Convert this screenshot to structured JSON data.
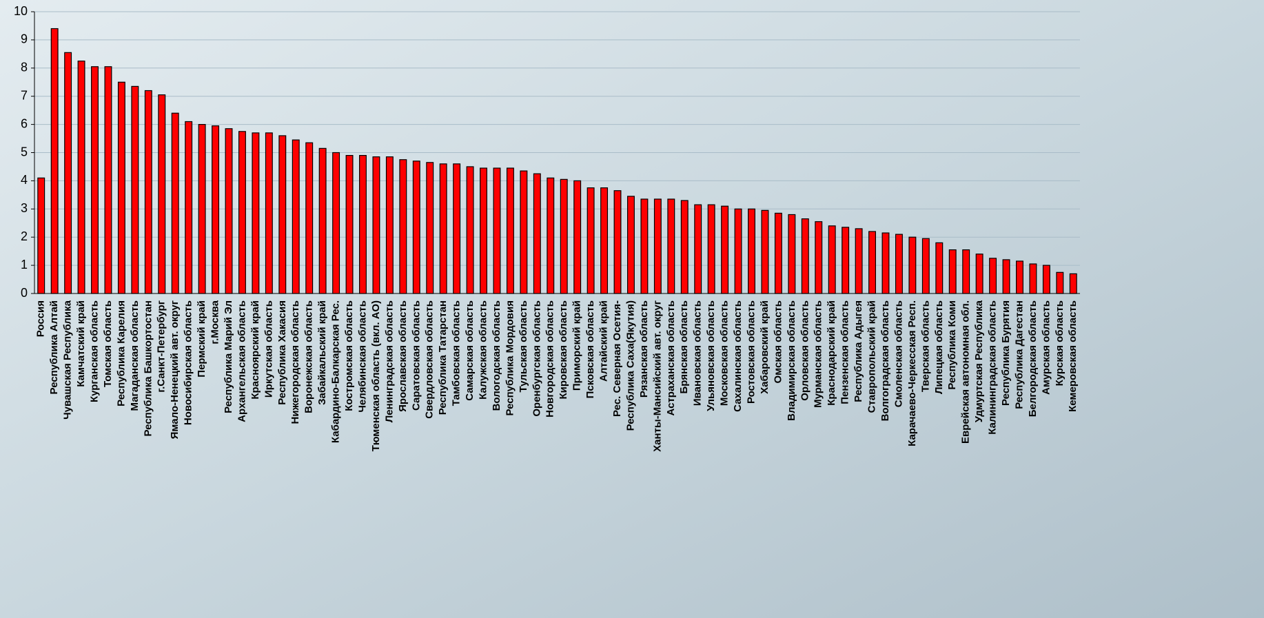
{
  "chart_data": {
    "type": "bar",
    "categories": [
      "Россия",
      "Республика Алтай",
      "Чувашская Республика",
      "Камчатский край",
      "Курганская область",
      "Томская область",
      "Республика Карелия",
      "Магаданская область",
      "Республика Башкортостан",
      "г.Санкт-Петербург",
      "Ямало-Ненецкий авт. округ",
      "Новосибирская область",
      "Пермский край",
      "г.Москва",
      "Республика Марий Эл",
      "Архангельская область",
      "Красноярский край",
      "Иркутская область",
      "Республика Хакасия",
      "Нижегородская область",
      "Воронежская область",
      "Забайкальский край",
      "Кабардино-Балкарская Рес.",
      "Костромская область",
      "Челябинская область",
      "Тюменская область (вкл. АО)",
      "Ленинградская область",
      "Ярославская область",
      "Саратовская область",
      "Свердловская область",
      "Республика Татарстан",
      "Тамбовская область",
      "Самарская область",
      "Калужская область",
      "Вологодская область",
      "Республика Мордовия",
      "Тульская область",
      "Оренбургская область",
      "Новгородская область",
      "Кировская область",
      "Приморский край",
      "Псковская область",
      "Алтайский край",
      "Рес. Северная Осетия-",
      "Республика Саха(Якутия)",
      "Рязанская область",
      "Ханты-Мансийский авт. округ",
      "Астраханская область",
      "Брянская область",
      "Ивановская область",
      "Ульяновская область",
      "Московская область",
      "Сахалинская область",
      "Ростовская область",
      "Хабаровский край",
      "Омская область",
      "Владимирская область",
      "Орловская область",
      "Мурманская область",
      "Краснодарский край",
      "Пензенская область",
      "Республика Адыгея",
      "Ставропольский край",
      "Волгоградская область",
      "Смоленская область",
      "Карачаево-Черкесская Респ.",
      "Тверская область",
      "Липецкая область",
      "Республика Коми",
      "Еврейская автономная обл.",
      "Удмуртская Республика",
      "Калининградская область",
      "Республика Бурятия",
      "Республика Дагестан",
      "Белгородская область",
      "Амурская область",
      "Курская область",
      "Кемеровская область"
    ],
    "values": [
      4.1,
      9.4,
      8.55,
      8.25,
      8.05,
      8.05,
      7.5,
      7.35,
      7.2,
      7.05,
      6.4,
      6.1,
      6.0,
      5.95,
      5.85,
      5.75,
      5.7,
      5.7,
      5.6,
      5.45,
      5.35,
      5.15,
      5.0,
      4.9,
      4.9,
      4.85,
      4.85,
      4.75,
      4.7,
      4.65,
      4.6,
      4.6,
      4.5,
      4.45,
      4.45,
      4.45,
      4.35,
      4.25,
      4.1,
      4.05,
      4.0,
      3.75,
      3.75,
      3.65,
      3.45,
      3.35,
      3.35,
      3.35,
      3.3,
      3.15,
      3.15,
      3.1,
      3.0,
      3.0,
      2.95,
      2.85,
      2.8,
      2.65,
      2.55,
      2.4,
      2.35,
      2.3,
      2.2,
      2.15,
      2.1,
      2.0,
      1.95,
      1.8,
      1.55,
      1.55,
      1.4,
      1.25,
      1.2,
      1.15,
      1.05,
      1.0,
      0.75,
      0.7
    ],
    "color": "#ff0000",
    "ylim": [
      0,
      10
    ],
    "yticks": [
      0,
      1,
      2,
      3,
      4,
      5,
      6,
      7,
      8,
      9,
      10
    ],
    "grid": true
  }
}
